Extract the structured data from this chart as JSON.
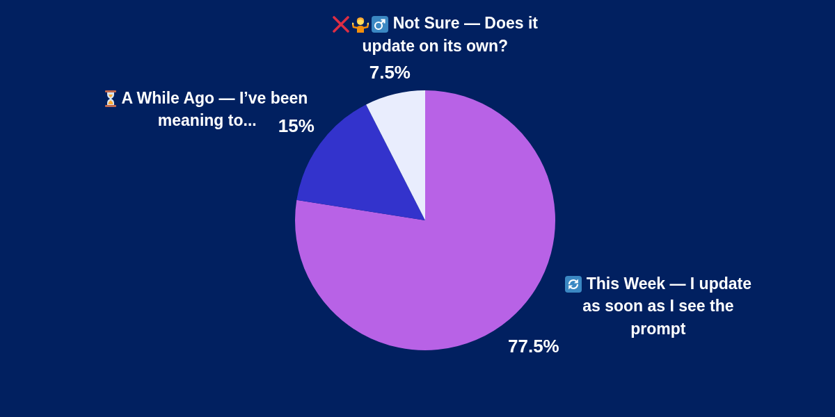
{
  "chart_data": {
    "type": "pie",
    "categories": [
      "This Week — I update as soon as I see the prompt",
      "A While Ago — I’ve been meaning to...",
      "Not Sure — Does it update on its own?"
    ],
    "values": [
      77.5,
      15,
      7.5
    ],
    "colors": [
      "#b862e6",
      "#3333cc",
      "#e9edfd"
    ],
    "value_labels": [
      "77.5%",
      "15%",
      "7.5%"
    ]
  }
}
